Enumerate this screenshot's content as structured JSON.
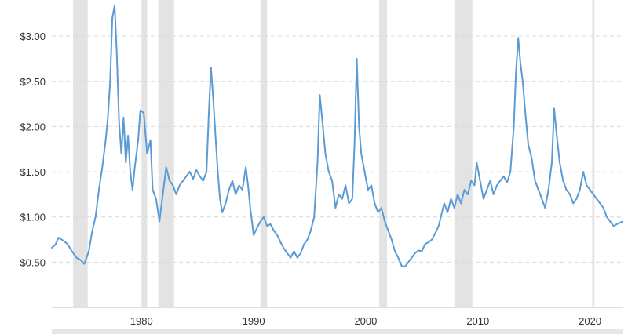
{
  "chart_data": {
    "type": "line",
    "title": "",
    "xlabel": "",
    "ylabel": "",
    "xlim": [
      1972.0,
      2022.9
    ],
    "ylim": [
      0,
      3.4
    ],
    "y_ticks": [
      {
        "value": 0.5,
        "label": "$0.50"
      },
      {
        "value": 1.0,
        "label": "$1.00"
      },
      {
        "value": 1.5,
        "label": "$1.50"
      },
      {
        "value": 2.0,
        "label": "$2.00"
      },
      {
        "value": 2.5,
        "label": "$2.50"
      },
      {
        "value": 3.0,
        "label": "$3.00"
      }
    ],
    "x_ticks": [
      {
        "value": 1980,
        "label": "1980"
      },
      {
        "value": 1990,
        "label": "1990"
      },
      {
        "value": 2000,
        "label": "2000"
      },
      {
        "value": 2010,
        "label": "2010"
      },
      {
        "value": 2020,
        "label": "2020"
      }
    ],
    "grid": "horizontal dashed",
    "recession_bands": [
      [
        1973.9,
        1975.2
      ],
      [
        1980.0,
        1980.5
      ],
      [
        1981.5,
        1982.9
      ],
      [
        1990.6,
        1991.2
      ],
      [
        2001.2,
        2001.9
      ],
      [
        2007.9,
        2009.5
      ],
      [
        2020.2,
        2020.4
      ]
    ],
    "series": [
      {
        "color": "#5b9bd5",
        "points": [
          [
            1972.0,
            0.66
          ],
          [
            1972.3,
            0.69
          ],
          [
            1972.6,
            0.77
          ],
          [
            1973.0,
            0.74
          ],
          [
            1973.4,
            0.7
          ],
          [
            1973.8,
            0.62
          ],
          [
            1974.2,
            0.55
          ],
          [
            1974.6,
            0.52
          ],
          [
            1974.9,
            0.48
          ],
          [
            1975.3,
            0.62
          ],
          [
            1975.6,
            0.84
          ],
          [
            1975.9,
            1.0
          ],
          [
            1976.2,
            1.3
          ],
          [
            1976.5,
            1.55
          ],
          [
            1976.8,
            1.85
          ],
          [
            1977.0,
            2.1
          ],
          [
            1977.2,
            2.5
          ],
          [
            1977.4,
            3.2
          ],
          [
            1977.6,
            3.34
          ],
          [
            1977.8,
            2.8
          ],
          [
            1978.0,
            2.05
          ],
          [
            1978.2,
            1.7
          ],
          [
            1978.4,
            2.1
          ],
          [
            1978.6,
            1.6
          ],
          [
            1978.8,
            1.9
          ],
          [
            1979.0,
            1.5
          ],
          [
            1979.2,
            1.3
          ],
          [
            1979.4,
            1.55
          ],
          [
            1979.7,
            1.85
          ],
          [
            1979.9,
            2.18
          ],
          [
            1980.2,
            2.15
          ],
          [
            1980.5,
            1.7
          ],
          [
            1980.8,
            1.85
          ],
          [
            1981.0,
            1.3
          ],
          [
            1981.3,
            1.2
          ],
          [
            1981.6,
            0.95
          ],
          [
            1981.9,
            1.25
          ],
          [
            1982.2,
            1.55
          ],
          [
            1982.5,
            1.4
          ],
          [
            1982.8,
            1.35
          ],
          [
            1983.1,
            1.25
          ],
          [
            1983.4,
            1.35
          ],
          [
            1983.7,
            1.4
          ],
          [
            1984.0,
            1.45
          ],
          [
            1984.3,
            1.5
          ],
          [
            1984.6,
            1.42
          ],
          [
            1984.9,
            1.52
          ],
          [
            1985.2,
            1.45
          ],
          [
            1985.5,
            1.4
          ],
          [
            1985.8,
            1.5
          ],
          [
            1986.0,
            2.15
          ],
          [
            1986.2,
            2.65
          ],
          [
            1986.4,
            2.3
          ],
          [
            1986.6,
            1.9
          ],
          [
            1986.8,
            1.5
          ],
          [
            1987.0,
            1.2
          ],
          [
            1987.2,
            1.05
          ],
          [
            1987.5,
            1.15
          ],
          [
            1987.8,
            1.3
          ],
          [
            1988.1,
            1.4
          ],
          [
            1988.4,
            1.25
          ],
          [
            1988.7,
            1.35
          ],
          [
            1989.0,
            1.3
          ],
          [
            1989.3,
            1.55
          ],
          [
            1989.5,
            1.35
          ],
          [
            1989.7,
            1.1
          ],
          [
            1990.0,
            0.8
          ],
          [
            1990.3,
            0.88
          ],
          [
            1990.6,
            0.95
          ],
          [
            1990.9,
            1.0
          ],
          [
            1991.2,
            0.9
          ],
          [
            1991.5,
            0.92
          ],
          [
            1991.8,
            0.85
          ],
          [
            1992.1,
            0.8
          ],
          [
            1992.4,
            0.72
          ],
          [
            1992.7,
            0.65
          ],
          [
            1993.0,
            0.6
          ],
          [
            1993.3,
            0.55
          ],
          [
            1993.6,
            0.62
          ],
          [
            1993.9,
            0.55
          ],
          [
            1994.2,
            0.6
          ],
          [
            1994.5,
            0.7
          ],
          [
            1994.8,
            0.75
          ],
          [
            1995.1,
            0.85
          ],
          [
            1995.4,
            1.0
          ],
          [
            1995.7,
            1.6
          ],
          [
            1995.9,
            2.35
          ],
          [
            1996.1,
            2.1
          ],
          [
            1996.4,
            1.7
          ],
          [
            1996.7,
            1.5
          ],
          [
            1997.0,
            1.4
          ],
          [
            1997.3,
            1.1
          ],
          [
            1997.6,
            1.25
          ],
          [
            1997.9,
            1.2
          ],
          [
            1998.2,
            1.35
          ],
          [
            1998.5,
            1.15
          ],
          [
            1998.8,
            1.2
          ],
          [
            1999.0,
            1.8
          ],
          [
            1999.2,
            2.75
          ],
          [
            1999.4,
            2.0
          ],
          [
            1999.6,
            1.7
          ],
          [
            1999.9,
            1.5
          ],
          [
            2000.2,
            1.3
          ],
          [
            2000.5,
            1.35
          ],
          [
            2000.8,
            1.15
          ],
          [
            2001.1,
            1.05
          ],
          [
            2001.4,
            1.1
          ],
          [
            2001.7,
            0.95
          ],
          [
            2002.0,
            0.85
          ],
          [
            2002.3,
            0.75
          ],
          [
            2002.6,
            0.62
          ],
          [
            2002.9,
            0.55
          ],
          [
            2003.2,
            0.46
          ],
          [
            2003.5,
            0.45
          ],
          [
            2003.8,
            0.5
          ],
          [
            2004.1,
            0.55
          ],
          [
            2004.4,
            0.6
          ],
          [
            2004.7,
            0.63
          ],
          [
            2005.0,
            0.62
          ],
          [
            2005.3,
            0.7
          ],
          [
            2005.6,
            0.72
          ],
          [
            2005.9,
            0.75
          ],
          [
            2006.2,
            0.82
          ],
          [
            2006.5,
            0.9
          ],
          [
            2006.7,
            1.0
          ],
          [
            2007.0,
            1.15
          ],
          [
            2007.3,
            1.05
          ],
          [
            2007.6,
            1.2
          ],
          [
            2007.9,
            1.1
          ],
          [
            2008.2,
            1.25
          ],
          [
            2008.5,
            1.15
          ],
          [
            2008.8,
            1.3
          ],
          [
            2009.1,
            1.25
          ],
          [
            2009.4,
            1.4
          ],
          [
            2009.7,
            1.35
          ],
          [
            2009.9,
            1.6
          ],
          [
            2010.2,
            1.4
          ],
          [
            2010.5,
            1.2
          ],
          [
            2010.8,
            1.3
          ],
          [
            2011.1,
            1.4
          ],
          [
            2011.4,
            1.25
          ],
          [
            2011.7,
            1.35
          ],
          [
            2012.0,
            1.4
          ],
          [
            2012.3,
            1.45
          ],
          [
            2012.6,
            1.38
          ],
          [
            2012.9,
            1.5
          ],
          [
            2013.2,
            2.0
          ],
          [
            2013.4,
            2.6
          ],
          [
            2013.6,
            2.98
          ],
          [
            2013.8,
            2.7
          ],
          [
            2014.0,
            2.5
          ],
          [
            2014.2,
            2.2
          ],
          [
            2014.5,
            1.8
          ],
          [
            2014.8,
            1.65
          ],
          [
            2015.1,
            1.4
          ],
          [
            2015.4,
            1.3
          ],
          [
            2015.7,
            1.2
          ],
          [
            2016.0,
            1.1
          ],
          [
            2016.3,
            1.3
          ],
          [
            2016.6,
            1.6
          ],
          [
            2016.8,
            2.2
          ],
          [
            2017.0,
            1.95
          ],
          [
            2017.3,
            1.6
          ],
          [
            2017.6,
            1.4
          ],
          [
            2017.9,
            1.3
          ],
          [
            2018.2,
            1.25
          ],
          [
            2018.5,
            1.15
          ],
          [
            2018.8,
            1.2
          ],
          [
            2019.1,
            1.3
          ],
          [
            2019.4,
            1.5
          ],
          [
            2019.7,
            1.35
          ],
          [
            2020.0,
            1.3
          ],
          [
            2020.3,
            1.25
          ],
          [
            2020.6,
            1.2
          ],
          [
            2020.9,
            1.15
          ],
          [
            2021.2,
            1.1
          ],
          [
            2021.5,
            1.0
          ],
          [
            2021.8,
            0.95
          ],
          [
            2022.1,
            0.9
          ],
          [
            2022.4,
            0.92
          ],
          [
            2022.9,
            0.95
          ]
        ]
      }
    ]
  }
}
